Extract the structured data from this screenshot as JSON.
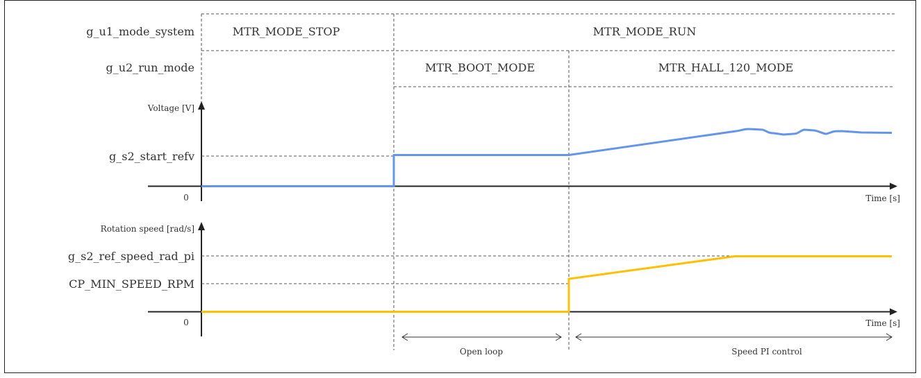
{
  "rows": {
    "mode_system": {
      "label": "g_u1_mode_system",
      "stop": "MTR_MODE_STOP",
      "run": "MTR_MODE_RUN"
    },
    "run_mode": {
      "label": "g_u2_run_mode",
      "boot": "MTR_BOOT_MODE",
      "hall": "MTR_HALL_120_MODE"
    }
  },
  "voltage_chart": {
    "ylabel": "Voltage [V]",
    "ref_label": "g_s2_start_refv",
    "zero": "0",
    "xlabel": "Time [s]",
    "color": "#6495ED"
  },
  "speed_chart": {
    "ylabel": "Rotation speed [rad/s]",
    "ref_high_label": "g_s2_ref_speed_rad_pi",
    "ref_low_label": "CP_MIN_SPEED_RPM",
    "zero": "0",
    "xlabel": "Time [s]",
    "color": "#FFC000"
  },
  "phases": {
    "open_loop": "Open loop",
    "speed_pi": "Speed PI control"
  }
}
